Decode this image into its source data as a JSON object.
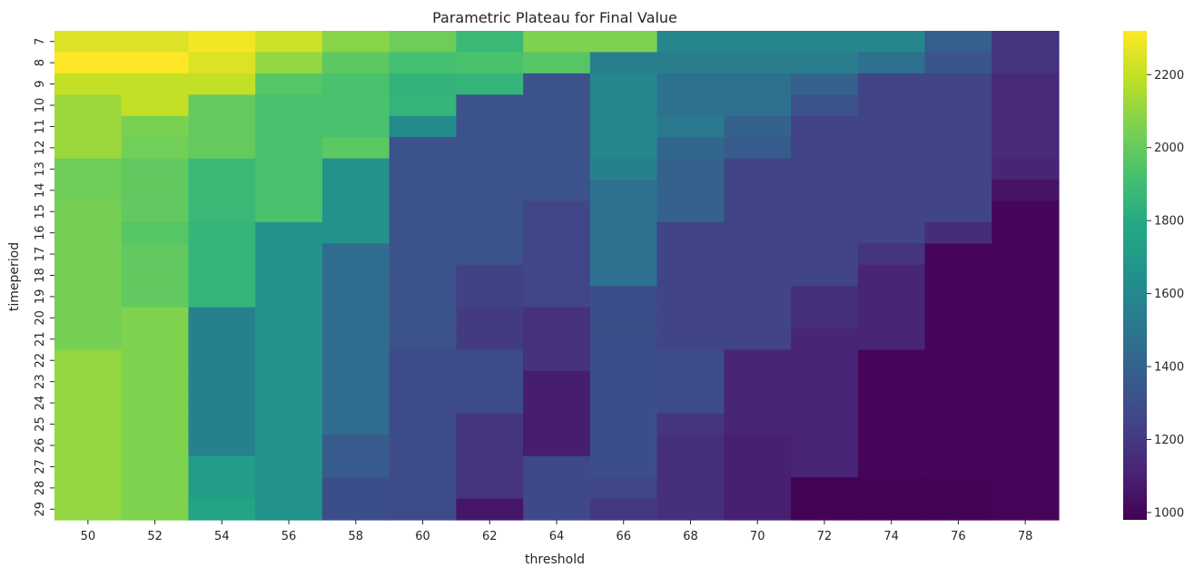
{
  "chart_data": {
    "type": "heatmap",
    "title": "Parametric Plateau for Final Value",
    "xlabel": "threshold",
    "ylabel": "timeperiod",
    "x_categories": [
      "50",
      "52",
      "54",
      "56",
      "58",
      "60",
      "62",
      "64",
      "66",
      "68",
      "70",
      "72",
      "74",
      "76",
      "78"
    ],
    "y_categories": [
      "7",
      "8",
      "9",
      "10",
      "11",
      "12",
      "13",
      "14",
      "15",
      "16",
      "17",
      "18",
      "19",
      "20",
      "21",
      "22",
      "23",
      "24",
      "25",
      "26",
      "27",
      "28",
      "29"
    ],
    "colormap": "viridis",
    "vmin": 980,
    "vmax": 2320,
    "colorbar_ticks": [
      1000,
      1200,
      1400,
      1600,
      1800,
      2000,
      2200
    ],
    "grid": false,
    "values": [
      [
        2250,
        2250,
        2300,
        2220,
        2080,
        2020,
        1880,
        2060,
        2060,
        1590,
        1590,
        1590,
        1590,
        1380,
        1180
      ],
      [
        2320,
        2320,
        2250,
        2100,
        1980,
        1920,
        1930,
        1960,
        1550,
        1550,
        1550,
        1550,
        1480,
        1330,
        1180
      ],
      [
        2200,
        2200,
        2200,
        1960,
        1930,
        1850,
        1860,
        1320,
        1590,
        1480,
        1480,
        1400,
        1250,
        1250,
        1140
      ],
      [
        2120,
        2200,
        2000,
        1930,
        1930,
        1860,
        1320,
        1320,
        1590,
        1480,
        1480,
        1320,
        1250,
        1250,
        1140
      ],
      [
        2120,
        2050,
        2000,
        1930,
        1930,
        1620,
        1320,
        1320,
        1590,
        1520,
        1400,
        1250,
        1250,
        1250,
        1140
      ],
      [
        2120,
        2030,
        2000,
        1930,
        1980,
        1320,
        1320,
        1320,
        1590,
        1420,
        1360,
        1250,
        1250,
        1250,
        1140
      ],
      [
        2020,
        1990,
        1880,
        1930,
        1660,
        1320,
        1320,
        1320,
        1560,
        1400,
        1250,
        1250,
        1250,
        1250,
        1120
      ],
      [
        2020,
        1990,
        1880,
        1930,
        1660,
        1320,
        1320,
        1320,
        1480,
        1400,
        1250,
        1250,
        1250,
        1250,
        1050
      ],
      [
        2040,
        1990,
        1880,
        1930,
        1660,
        1320,
        1320,
        1260,
        1480,
        1400,
        1250,
        1250,
        1250,
        1250,
        1000
      ],
      [
        2040,
        1960,
        1860,
        1660,
        1660,
        1320,
        1320,
        1260,
        1480,
        1250,
        1250,
        1250,
        1250,
        1150,
        1000
      ],
      [
        2040,
        1990,
        1860,
        1660,
        1450,
        1320,
        1320,
        1260,
        1480,
        1250,
        1250,
        1250,
        1180,
        1000,
        1000
      ],
      [
        2040,
        1990,
        1860,
        1660,
        1450,
        1320,
        1240,
        1260,
        1480,
        1250,
        1250,
        1250,
        1120,
        1000,
        1000
      ],
      [
        2040,
        1990,
        1860,
        1660,
        1450,
        1320,
        1240,
        1260,
        1300,
        1250,
        1250,
        1160,
        1120,
        1000,
        1000
      ],
      [
        2040,
        2060,
        1560,
        1660,
        1450,
        1320,
        1210,
        1170,
        1300,
        1250,
        1250,
        1160,
        1120,
        1000,
        1000
      ],
      [
        2040,
        2060,
        1560,
        1660,
        1450,
        1320,
        1210,
        1170,
        1300,
        1250,
        1250,
        1120,
        1120,
        1000,
        1000
      ],
      [
        2100,
        2060,
        1560,
        1660,
        1450,
        1290,
        1290,
        1170,
        1300,
        1290,
        1120,
        1120,
        1000,
        1000,
        1000
      ],
      [
        2100,
        2060,
        1560,
        1660,
        1450,
        1290,
        1290,
        1090,
        1300,
        1290,
        1120,
        1120,
        1000,
        1000,
        1000
      ],
      [
        2100,
        2060,
        1560,
        1660,
        1450,
        1290,
        1290,
        1090,
        1300,
        1290,
        1120,
        1120,
        1000,
        1000,
        1000
      ],
      [
        2100,
        2060,
        1560,
        1660,
        1450,
        1290,
        1180,
        1090,
        1300,
        1180,
        1120,
        1120,
        1000,
        1000,
        1000
      ],
      [
        2100,
        2060,
        1560,
        1660,
        1360,
        1290,
        1180,
        1090,
        1300,
        1160,
        1100,
        1120,
        1000,
        1000,
        1000
      ],
      [
        2100,
        2060,
        1720,
        1660,
        1360,
        1290,
        1180,
        1270,
        1300,
        1160,
        1100,
        1120,
        1000,
        1000,
        1000
      ],
      [
        2100,
        2060,
        1720,
        1660,
        1300,
        1290,
        1180,
        1270,
        1260,
        1160,
        1100,
        990,
        990,
        990,
        1000
      ],
      [
        2100,
        2060,
        1760,
        1660,
        1300,
        1290,
        1060,
        1270,
        1200,
        1160,
        1100,
        990,
        990,
        990,
        1000
      ]
    ]
  }
}
